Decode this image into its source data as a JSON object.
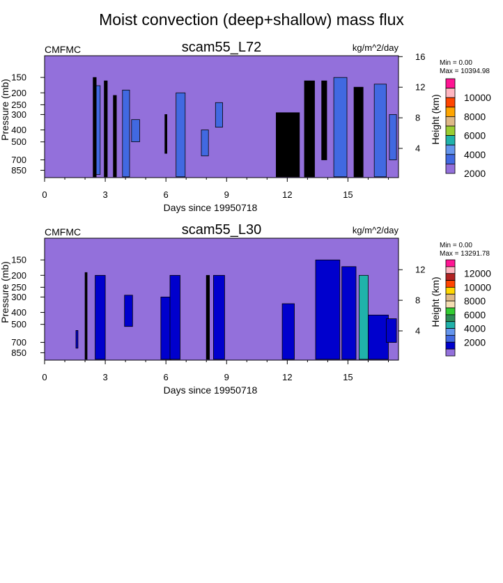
{
  "figure_title": "Moist convection (deep+shallow) mass flux",
  "chart_data": [
    {
      "type": "heatmap",
      "title": "scam55_L72",
      "left_label": "CMFMC",
      "units": "kg/m^2/day",
      "xlabel": "Days since 19950718",
      "ylabel": "Pressure (mb)",
      "y2label": "Height (km)",
      "xlim": [
        0,
        17.5
      ],
      "ylim": [
        975,
        100
      ],
      "x_ticks": [
        0,
        3,
        6,
        9,
        12,
        15
      ],
      "x_tick_labels": [
        "0",
        "3",
        "6",
        "9",
        "12",
        "15"
      ],
      "y_ticks": [
        150,
        200,
        250,
        300,
        400,
        500,
        700,
        850
      ],
      "y_tick_labels": [
        "150",
        "200",
        "250",
        "300",
        "400",
        "500",
        "700",
        "850"
      ],
      "y2_ticks": [
        4,
        8,
        12,
        16
      ],
      "y2_tick_labels": [
        "4",
        "8",
        "12",
        "16"
      ],
      "min_text": "Min =   0.00",
      "max_text": "Max = 10394.98",
      "colorbar": {
        "colors": [
          "#ff1493",
          "#ffb6c1",
          "#ff4500",
          "#ffa500",
          "#deb887",
          "#9acd32",
          "#20b2aa",
          "#6495ed",
          "#4169e1",
          "#9370db"
        ],
        "labels": [
          "10000",
          "8000",
          "6000",
          "4000",
          "2000"
        ]
      },
      "background_color": "#9370db",
      "features": [
        {
          "x0": 2.45,
          "x1": 2.75,
          "p_top": 175,
          "p_bot": 920,
          "color": "#4169e1"
        },
        {
          "x0": 2.4,
          "x1": 2.55,
          "p_top": 150,
          "p_bot": 960,
          "color": "#000000"
        },
        {
          "x0": 2.95,
          "x1": 3.1,
          "p_top": 160,
          "p_bot": 960,
          "color": "#000000"
        },
        {
          "x0": 3.4,
          "x1": 3.55,
          "p_top": 210,
          "p_bot": 960,
          "color": "#000000"
        },
        {
          "x0": 3.85,
          "x1": 4.2,
          "p_top": 190,
          "p_bot": 960,
          "color": "#4169e1"
        },
        {
          "x0": 4.3,
          "x1": 4.7,
          "p_top": 330,
          "p_bot": 500,
          "color": "#4169e1"
        },
        {
          "x0": 5.95,
          "x1": 6.05,
          "p_top": 300,
          "p_bot": 620,
          "color": "#000000"
        },
        {
          "x0": 6.5,
          "x1": 6.95,
          "p_top": 200,
          "p_bot": 960,
          "color": "#4169e1"
        },
        {
          "x0": 7.75,
          "x1": 8.1,
          "p_top": 400,
          "p_bot": 650,
          "color": "#4169e1"
        },
        {
          "x0": 8.45,
          "x1": 8.8,
          "p_top": 240,
          "p_bot": 380,
          "color": "#4169e1"
        },
        {
          "x0": 11.45,
          "x1": 12.6,
          "p_top": 290,
          "p_bot": 960,
          "color": "#000000"
        },
        {
          "x0": 12.85,
          "x1": 13.35,
          "p_top": 160,
          "p_bot": 960,
          "color": "#000000"
        },
        {
          "x0": 13.7,
          "x1": 13.95,
          "p_top": 160,
          "p_bot": 700,
          "color": "#000000"
        },
        {
          "x0": 14.3,
          "x1": 14.95,
          "p_top": 150,
          "p_bot": 960,
          "color": "#4169e1"
        },
        {
          "x0": 15.3,
          "x1": 15.75,
          "p_top": 180,
          "p_bot": 960,
          "color": "#000000"
        },
        {
          "x0": 16.3,
          "x1": 16.9,
          "p_top": 170,
          "p_bot": 960,
          "color": "#4169e1"
        },
        {
          "x0": 17.05,
          "x1": 17.4,
          "p_top": 300,
          "p_bot": 700,
          "color": "#4169e1"
        }
      ]
    },
    {
      "type": "heatmap",
      "title": "scam55_L30",
      "left_label": "CMFMC",
      "units": "kg/m^2/day",
      "xlabel": "Days since 19950718",
      "ylabel": "Pressure (mb)",
      "y2label": "Height (km)",
      "xlim": [
        0,
        17.5
      ],
      "ylim": [
        975,
        100
      ],
      "x_ticks": [
        0,
        3,
        6,
        9,
        12,
        15
      ],
      "x_tick_labels": [
        "0",
        "3",
        "6",
        "9",
        "12",
        "15"
      ],
      "y_ticks": [
        150,
        200,
        250,
        300,
        400,
        500,
        700,
        850
      ],
      "y_tick_labels": [
        "150",
        "200",
        "250",
        "300",
        "400",
        "500",
        "700",
        "850"
      ],
      "y2_ticks": [
        4,
        8,
        12
      ],
      "y2_tick_labels": [
        "4",
        "8",
        "12"
      ],
      "min_text": "Min =   0.00",
      "max_text": "Max = 13291.78",
      "colorbar": {
        "colors": [
          "#ff1493",
          "#ffb6c1",
          "#b22222",
          "#ff4500",
          "#ffd700",
          "#deb887",
          "#f5deb3",
          "#32cd32",
          "#2e8b57",
          "#20b2aa",
          "#6495ed",
          "#4169e1",
          "#0000cd",
          "#9370db"
        ],
        "labels": [
          "12000",
          "10000",
          "8000",
          "6000",
          "4000",
          "2000"
        ]
      },
      "background_color": "#9370db",
      "features": [
        {
          "x0": 1.55,
          "x1": 1.65,
          "p_top": 560,
          "p_bot": 780,
          "color": "#0000cd"
        },
        {
          "x0": 2.0,
          "x1": 2.1,
          "p_top": 190,
          "p_bot": 960,
          "color": "#000000"
        },
        {
          "x0": 2.5,
          "x1": 3.0,
          "p_top": 200,
          "p_bot": 960,
          "color": "#0000cd"
        },
        {
          "x0": 3.95,
          "x1": 4.35,
          "p_top": 290,
          "p_bot": 520,
          "color": "#0000cd"
        },
        {
          "x0": 5.75,
          "x1": 6.25,
          "p_top": 300,
          "p_bot": 960,
          "color": "#0000cd"
        },
        {
          "x0": 6.2,
          "x1": 6.7,
          "p_top": 200,
          "p_bot": 960,
          "color": "#0000cd"
        },
        {
          "x0": 8.0,
          "x1": 8.15,
          "p_top": 200,
          "p_bot": 960,
          "color": "#000000"
        },
        {
          "x0": 8.35,
          "x1": 8.9,
          "p_top": 200,
          "p_bot": 960,
          "color": "#0000cd"
        },
        {
          "x0": 11.75,
          "x1": 12.35,
          "p_top": 340,
          "p_bot": 960,
          "color": "#0000cd"
        },
        {
          "x0": 13.4,
          "x1": 14.6,
          "p_top": 150,
          "p_bot": 960,
          "color": "#0000cd"
        },
        {
          "x0": 14.7,
          "x1": 15.4,
          "p_top": 170,
          "p_bot": 960,
          "color": "#0000cd"
        },
        {
          "x0": 15.55,
          "x1": 16.0,
          "p_top": 200,
          "p_bot": 960,
          "color": "#20b2aa"
        },
        {
          "x0": 16.0,
          "x1": 17.0,
          "p_top": 420,
          "p_bot": 960,
          "color": "#0000cd"
        },
        {
          "x0": 16.9,
          "x1": 17.4,
          "p_top": 450,
          "p_bot": 700,
          "color": "#0000cd"
        }
      ]
    }
  ]
}
